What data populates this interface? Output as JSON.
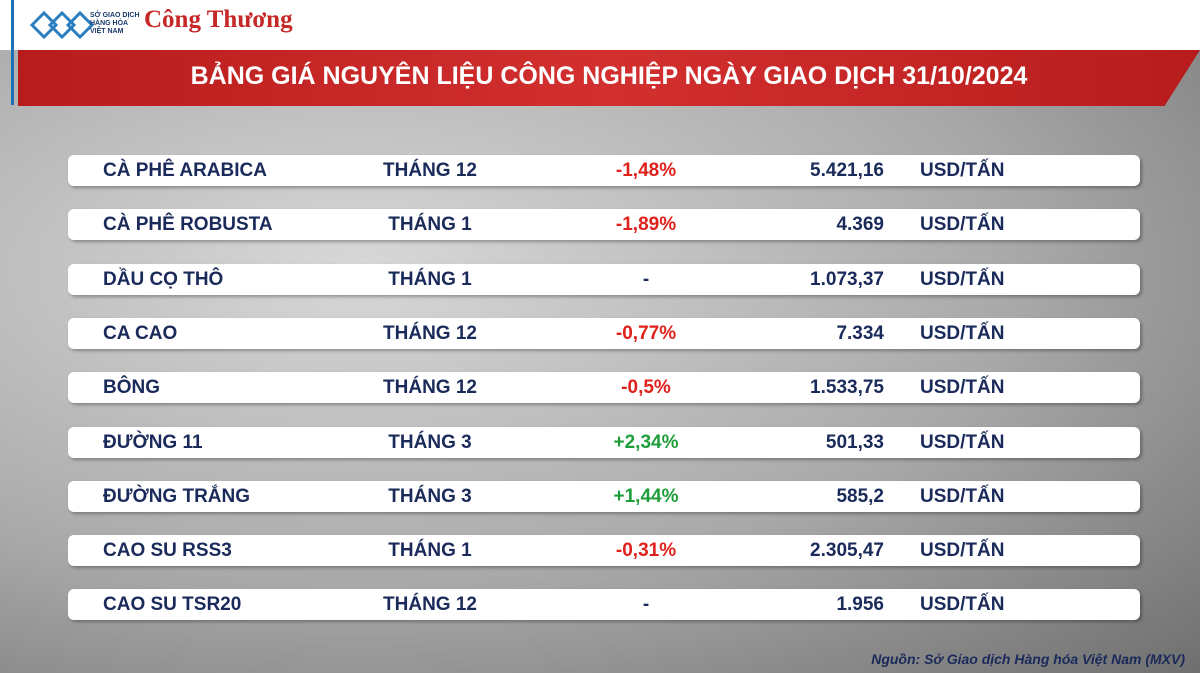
{
  "header": {
    "logo_lines": [
      "SỞ GIAO DỊCH",
      "HÀNG HÓA",
      "VIỆT NAM"
    ],
    "brand": "Công Thương",
    "title": "BẢNG GIÁ NGUYÊN LIỆU CÔNG NGHIỆP NGÀY GIAO DỊCH 31/10/2024"
  },
  "table": {
    "rows": [
      [
        "CÀ PHÊ ARABICA",
        "THÁNG 12",
        "-1,48%",
        "5.421,16",
        "USD/TẤN"
      ],
      [
        "CÀ PHÊ ROBUSTA",
        "THÁNG 1",
        "-1,89%",
        "4.369",
        "USD/TẤN"
      ],
      [
        "DẦU CỌ THÔ",
        "THÁNG 1",
        "-",
        "1.073,37",
        "USD/TẤN"
      ],
      [
        "CA CAO",
        "THÁNG 12",
        "-0,77%",
        "7.334",
        "USD/TẤN"
      ],
      [
        "BÔNG",
        "THÁNG 12",
        "-0,5%",
        "1.533,75",
        "USD/TẤN"
      ],
      [
        "ĐƯỜNG 11",
        "THÁNG 3",
        "+2,34%",
        "501,33",
        "USD/TẤN"
      ],
      [
        "ĐƯỜNG TRẮNG",
        "THÁNG 3",
        "+1,44%",
        "585,2",
        "USD/TẤN"
      ],
      [
        "CAO SU RSS3",
        "THÁNG 1",
        "-0,31%",
        "2.305,47",
        "USD/TẤN"
      ],
      [
        "CAO SU TSR20",
        "THÁNG 12",
        "-",
        "1.956",
        "USD/TẤN"
      ]
    ]
  },
  "source": "Nguồn: Sở Giao dịch Hàng hóa Việt Nam (MXV)"
}
